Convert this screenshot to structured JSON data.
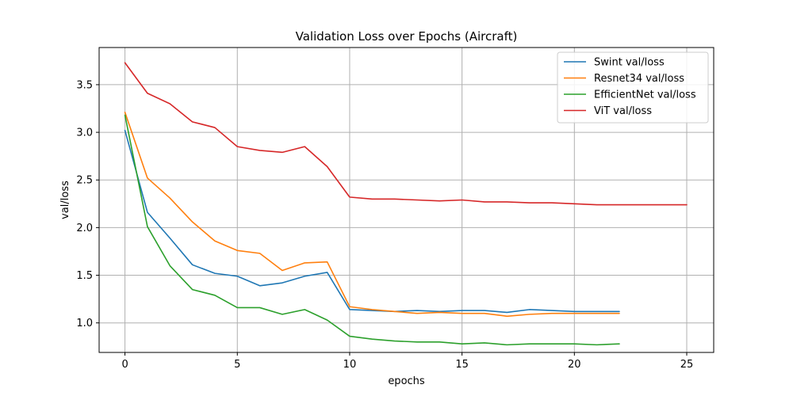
{
  "chart_data": {
    "type": "line",
    "title": "Validation Loss over Epochs (Aircraft)",
    "xlabel": "epochs",
    "ylabel": "val/loss",
    "xlim": [
      -1.15,
      26.2
    ],
    "ylim": [
      0.69,
      3.89
    ],
    "xticks": [
      0,
      5,
      10,
      15,
      20,
      25
    ],
    "yticks": [
      1.0,
      1.5,
      2.0,
      2.5,
      3.0,
      3.5
    ],
    "grid": true,
    "legend_position": "top-right",
    "series": [
      {
        "name": "Swint val/loss",
        "color": "#1f77b4",
        "x": [
          0,
          1,
          2,
          3,
          4,
          5,
          6,
          7,
          8,
          9,
          10,
          11,
          12,
          13,
          14,
          15,
          16,
          17,
          18,
          19,
          20,
          21,
          22
        ],
        "values": [
          3.02,
          2.16,
          1.89,
          1.61,
          1.52,
          1.49,
          1.39,
          1.42,
          1.49,
          1.53,
          1.14,
          1.13,
          1.12,
          1.13,
          1.12,
          1.13,
          1.13,
          1.11,
          1.14,
          1.13,
          1.12,
          1.12,
          1.12
        ]
      },
      {
        "name": "Resnet34 val/loss",
        "color": "#ff7f0e",
        "x": [
          0,
          1,
          2,
          3,
          4,
          5,
          6,
          7,
          8,
          9,
          10,
          11,
          12,
          13,
          14,
          15,
          16,
          17,
          18,
          19,
          20,
          21,
          22
        ],
        "values": [
          3.21,
          2.52,
          2.31,
          2.06,
          1.86,
          1.76,
          1.73,
          1.55,
          1.63,
          1.64,
          1.17,
          1.14,
          1.12,
          1.1,
          1.11,
          1.1,
          1.1,
          1.07,
          1.09,
          1.1,
          1.1,
          1.1,
          1.1
        ]
      },
      {
        "name": "EfficientNet val/loss",
        "color": "#2ca02c",
        "x": [
          0,
          1,
          2,
          3,
          4,
          5,
          6,
          7,
          8,
          9,
          10,
          11,
          12,
          13,
          14,
          15,
          16,
          17,
          18,
          19,
          20,
          21,
          22
        ],
        "values": [
          3.18,
          2.01,
          1.6,
          1.35,
          1.29,
          1.16,
          1.16,
          1.09,
          1.14,
          1.03,
          0.86,
          0.83,
          0.81,
          0.8,
          0.8,
          0.78,
          0.79,
          0.77,
          0.78,
          0.78,
          0.78,
          0.77,
          0.78
        ]
      },
      {
        "name": "ViT val/loss",
        "color": "#d62728",
        "x": [
          0,
          1,
          2,
          3,
          4,
          5,
          6,
          7,
          8,
          9,
          10,
          11,
          12,
          13,
          14,
          15,
          16,
          17,
          18,
          19,
          20,
          21,
          22,
          23,
          24,
          25
        ],
        "values": [
          3.73,
          3.41,
          3.3,
          3.11,
          3.05,
          2.85,
          2.81,
          2.79,
          2.85,
          2.64,
          2.32,
          2.3,
          2.3,
          2.29,
          2.28,
          2.29,
          2.27,
          2.27,
          2.26,
          2.26,
          2.25,
          2.24,
          2.24,
          2.24,
          2.24,
          2.24
        ]
      }
    ]
  }
}
